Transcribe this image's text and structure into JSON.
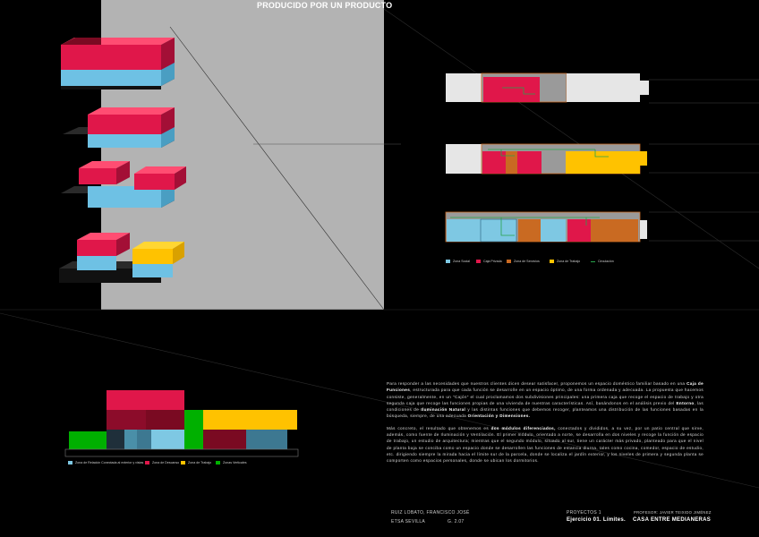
{
  "banner": "PRODUCIDO POR UN PRODUCTO",
  "plan_legend": [
    {
      "label": "Zona Social",
      "color": "#7ec8e3"
    },
    {
      "label": "Caja Privada",
      "color": "#e0174a"
    },
    {
      "label": "Zona de Servicios",
      "color": "#c96a22"
    },
    {
      "label": "Zona de Trabajo",
      "color": "#ffc200"
    },
    {
      "label": "Circulación",
      "color": "#27a34a"
    }
  ],
  "section_legend": [
    {
      "label": "Zona de Relación Conectada al exterior y vistas",
      "color": "#7ec8e3"
    },
    {
      "label": "Zona de Descanso",
      "color": "#e0174a"
    },
    {
      "label": "Zona de Trabajo",
      "color": "#ffc200"
    },
    {
      "label": "Zonas Verticales",
      "color": "#00b000"
    }
  ],
  "description": {
    "p1_a": "Para responder a las necesidades que nuestros clientes dicen desear satisfacer, proponemos un espacio doméstico familiar basado en una",
    "p1_b": "Caja de Funciones",
    "p1_c": ", estructurada para que cada función se desarrolle en un espacio óptimo, de una forma ordenada y adecuada. La propuesta que hacemos consiste, generalmente, en un \"Cajón\" el cual proclamamos dos subdivisiones principales: una primera caja que recoge el espacio de trabajo y otra segunda caja que recoge las funciones propias de una vivienda de nuestras características. Así, basándonos en el análisis previo del",
    "p1_d": "Entorno",
    "p1_e": ", las condiciones de",
    "p1_f": "Iluminación Natural",
    "p1_g": "y las distintas funciones que debemos recoger, planteamos una distribución de las funciones basadas en la búsqueda, siempre, de una adecuada",
    "p1_h": "Orientación y Dimensiones.",
    "p2_a": "Más concreto, el resultado que obtenemos es",
    "p2_b": "dos módulos diferenciados,",
    "p2_c": "conectados y divididos, a su vez, por un patio central que sirve, además, como fuente de Iluminación y Ventilación. El primer módulo, orientado a norte, se desarrolla en dos niveles y recoge la función de espacio de trabajo, un estudio de arquitectura; mientras que el segundo módulo, situado al sur, tiene un carácter más privado, planteado para que el nivel de planta baja se conciba como un espacio donde se desarrollen las funciones de estancia diurna, tales como cocina, comedor, espacio de estudio, etc. dirigiendo siempre la mirada hacia el límite sur de la parcela, donde se localiza el jardín exterior, y los niveles de primera y segunda planta se comporten como espacios personales, donde se ubican los dormitorios."
  },
  "footer": {
    "author": "RUIZ LOBATO, FRANCISCO JOSÉ",
    "school": "ETSA SEVILLA",
    "group": "G. 2.07",
    "course": "PROYECTOS 1",
    "professor": "PROFESOR: JAVIER TEIXIDO JIMÉNEZ",
    "exercise": "Ejercicio 01.  Límites.",
    "project": "CASA ENTRE MEDIANERAS"
  },
  "colors": {
    "social": "#7ec8e3",
    "private": "#e0174a",
    "service": "#c96a22",
    "work": "#ffc200",
    "green": "#27a34a",
    "vertical": "#00b000"
  }
}
